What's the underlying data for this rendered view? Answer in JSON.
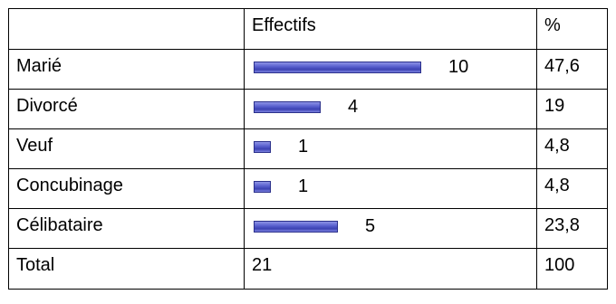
{
  "table": {
    "header": {
      "label": "",
      "count": "Effectifs",
      "percent": "%"
    },
    "max_count": 10,
    "rows": [
      {
        "label": "Marié",
        "count": "10",
        "value": 10,
        "percent": "47,6"
      },
      {
        "label": "Divorcé",
        "count": "4",
        "value": 4,
        "percent": "19"
      },
      {
        "label": "Veuf",
        "count": "1",
        "value": 1,
        "percent": "4,8"
      },
      {
        "label": "Concubinage",
        "count": "1",
        "value": 1,
        "percent": "4,8"
      },
      {
        "label": "Célibataire",
        "count": "5",
        "value": 5,
        "percent": "23,8"
      }
    ],
    "total": {
      "label": "Total",
      "count": "21",
      "percent": "100"
    }
  },
  "colors": {
    "bar_fill": "#5b62cf",
    "bar_border": "#2a2f8a"
  }
}
